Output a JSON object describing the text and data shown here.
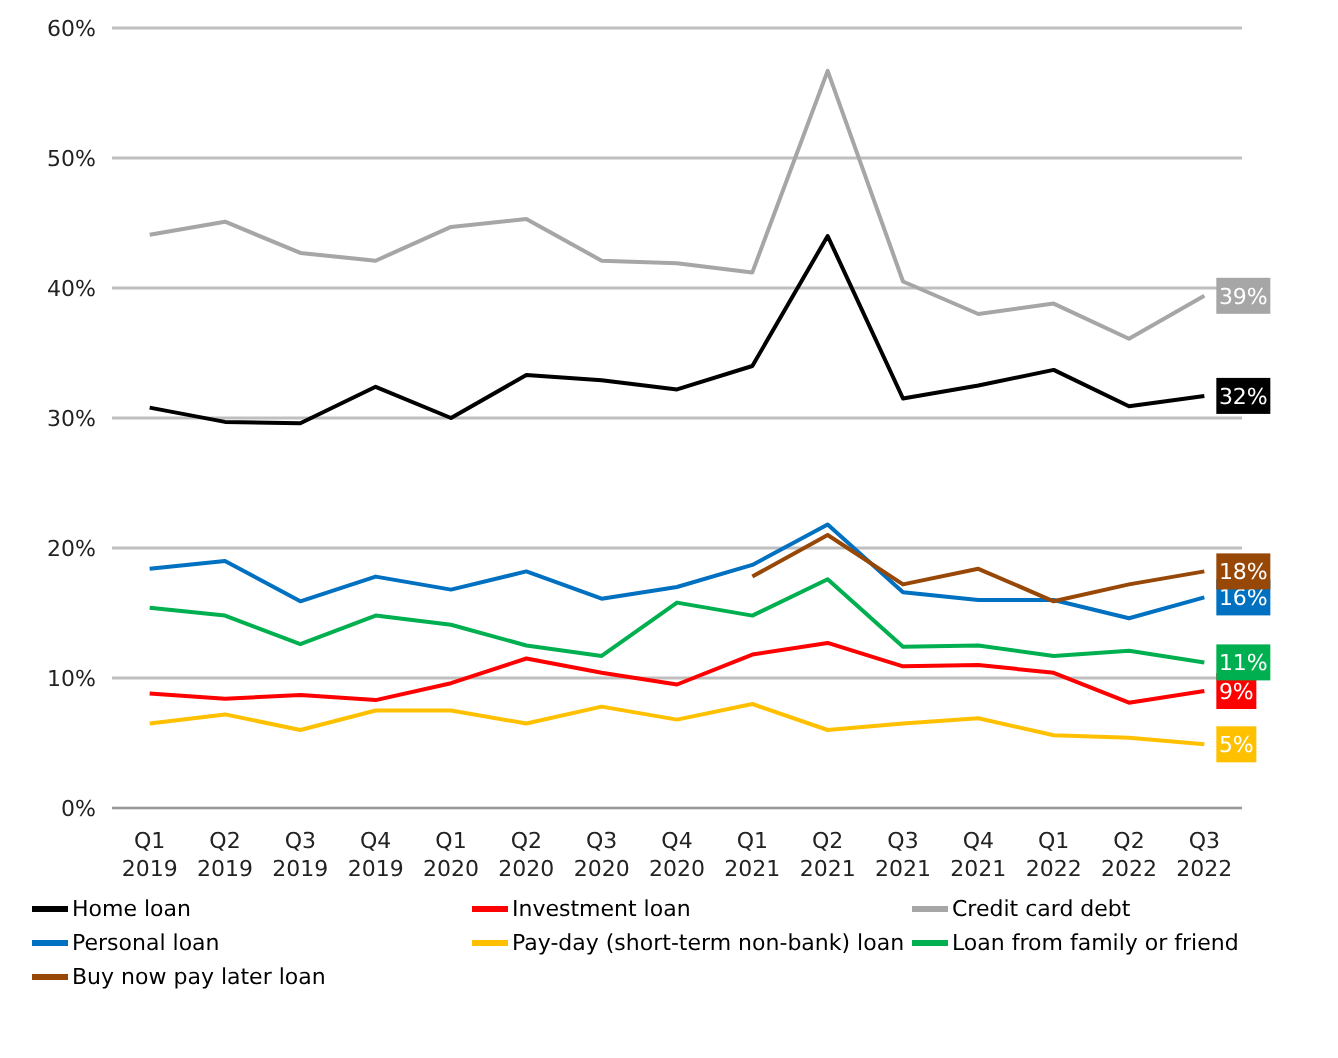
{
  "chart_data": {
    "type": "line",
    "categories": [
      "Q1 2019",
      "Q2 2019",
      "Q3 2019",
      "Q4 2019",
      "Q1 2020",
      "Q2 2020",
      "Q3 2020",
      "Q4 2020",
      "Q1 2021",
      "Q2 2021",
      "Q3 2021",
      "Q4 2021",
      "Q1 2022",
      "Q2 2022",
      "Q3 2022"
    ],
    "series": [
      {
        "name": "Home loan",
        "color": "#000000",
        "values": [
          30.8,
          29.7,
          29.6,
          32.4,
          30.0,
          33.3,
          32.9,
          32.2,
          34.0,
          44.0,
          31.5,
          32.5,
          33.7,
          30.9,
          31.7
        ],
        "value_labels": [
          null,
          null,
          null,
          null,
          null,
          null,
          null,
          null,
          null,
          null,
          null,
          null,
          null,
          null,
          "32%"
        ]
      },
      {
        "name": "Investment loan",
        "color": "#ff0000",
        "values": [
          8.8,
          8.4,
          8.7,
          8.3,
          9.6,
          11.5,
          10.4,
          9.5,
          11.8,
          12.7,
          10.9,
          11.0,
          10.4,
          8.1,
          9.0
        ],
        "value_labels": [
          null,
          null,
          null,
          null,
          null,
          null,
          null,
          null,
          null,
          null,
          null,
          null,
          null,
          null,
          "9%"
        ]
      },
      {
        "name": "Credit card debt",
        "color": "#a6a6a6",
        "values": [
          44.1,
          45.1,
          42.7,
          42.1,
          44.7,
          45.3,
          42.1,
          41.9,
          41.2,
          56.7,
          40.5,
          38.0,
          38.8,
          36.1,
          39.4
        ],
        "value_labels": [
          null,
          null,
          null,
          null,
          null,
          null,
          null,
          null,
          null,
          null,
          null,
          null,
          null,
          null,
          "39%"
        ]
      },
      {
        "name": "Personal loan",
        "color": "#0070c0",
        "values": [
          18.4,
          19.0,
          15.9,
          17.8,
          16.8,
          18.2,
          16.1,
          17.0,
          18.7,
          21.8,
          16.6,
          16.0,
          16.0,
          14.6,
          16.2
        ],
        "value_labels": [
          null,
          null,
          null,
          null,
          null,
          null,
          null,
          null,
          null,
          null,
          null,
          null,
          null,
          null,
          "16%"
        ]
      },
      {
        "name": "Pay-day (short-term non-bank) loan",
        "color": "#ffc000",
        "values": [
          6.5,
          7.2,
          6.0,
          7.5,
          7.5,
          6.5,
          7.8,
          6.8,
          8.0,
          6.0,
          6.5,
          6.9,
          5.6,
          5.4,
          4.9
        ],
        "value_labels": [
          null,
          null,
          null,
          null,
          null,
          null,
          null,
          null,
          null,
          null,
          null,
          null,
          null,
          null,
          "5%"
        ]
      },
      {
        "name": "Loan from family or friend",
        "color": "#00b050",
        "values": [
          15.4,
          14.8,
          12.6,
          14.8,
          14.1,
          12.5,
          11.7,
          15.8,
          14.8,
          17.6,
          12.4,
          12.5,
          11.7,
          12.1,
          11.2
        ],
        "value_labels": [
          null,
          null,
          null,
          null,
          null,
          null,
          null,
          null,
          null,
          null,
          null,
          null,
          null,
          null,
          "11%"
        ]
      },
      {
        "name": "Buy now pay later loan",
        "color": "#974706",
        "values": [
          null,
          null,
          null,
          null,
          null,
          null,
          null,
          null,
          17.8,
          21.0,
          17.2,
          18.4,
          15.9,
          17.2,
          18.2
        ],
        "value_labels": [
          null,
          null,
          null,
          null,
          null,
          null,
          null,
          null,
          null,
          null,
          null,
          null,
          null,
          null,
          "18%"
        ]
      }
    ],
    "ylim": [
      0,
      60
    ],
    "yticks": [
      {
        "value": 0,
        "label": "0%"
      },
      {
        "value": 10,
        "label": "10%"
      },
      {
        "value": 20,
        "label": "20%"
      },
      {
        "value": 30,
        "label": "30%"
      },
      {
        "value": 40,
        "label": "40%"
      },
      {
        "value": 50,
        "label": "50%"
      },
      {
        "value": 60,
        "label": "60%"
      }
    ],
    "grid": "y",
    "legend": "bottom",
    "marker": "none",
    "line_style": "solid"
  }
}
